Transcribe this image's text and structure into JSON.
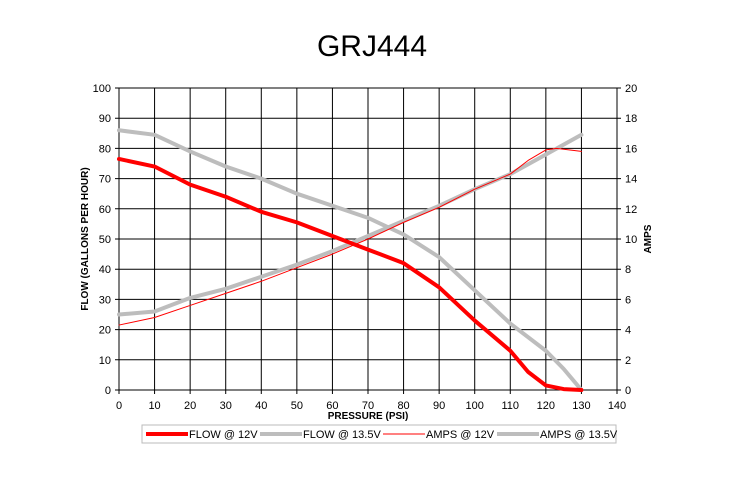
{
  "chart_data": {
    "type": "line",
    "title": "GRJ444",
    "xlabel": "PRESSURE (PSI)",
    "ylabel": "FLOW (GALLONS PER HOUR)",
    "y2label": "AMPS",
    "xlim": [
      0,
      140
    ],
    "ylim": [
      0,
      100
    ],
    "y2lim": [
      0,
      20
    ],
    "xticks": [
      "0",
      "10",
      "20",
      "30",
      "40",
      "50",
      "60",
      "70",
      "80",
      "90",
      "100",
      "110",
      "120",
      "130",
      "140"
    ],
    "yticks": [
      "0",
      "10",
      "20",
      "30",
      "40",
      "50",
      "60",
      "70",
      "80",
      "90",
      "100"
    ],
    "y2ticks": [
      "0",
      "2",
      "4",
      "6",
      "8",
      "10",
      "12",
      "14",
      "16",
      "18",
      "20"
    ],
    "grid": true,
    "legend_position": "bottom",
    "series": [
      {
        "name": "FLOW @ 12V",
        "axis": "left",
        "color": "#ff0000",
        "width": 4,
        "x": [
          0,
          10,
          20,
          30,
          40,
          50,
          60,
          70,
          80,
          90,
          100,
          110,
          115,
          120,
          125,
          130
        ],
        "y": [
          76.5,
          74,
          68,
          64,
          59,
          55.5,
          51,
          46.5,
          42,
          34,
          23,
          13,
          6,
          1.5,
          0.3,
          0
        ]
      },
      {
        "name": "FLOW @ 13.5V",
        "axis": "left",
        "color": "#bdbdbd",
        "width": 4,
        "x": [
          0,
          10,
          20,
          30,
          40,
          50,
          60,
          70,
          80,
          90,
          100,
          110,
          120,
          125,
          130
        ],
        "y": [
          86,
          84.5,
          79,
          74,
          70,
          65,
          61,
          57,
          51.5,
          44,
          33,
          22,
          13,
          7,
          0
        ]
      },
      {
        "name": "AMPS @ 12V",
        "axis": "right",
        "color": "#ff0000",
        "width": 1,
        "x": [
          0,
          10,
          20,
          30,
          40,
          50,
          60,
          70,
          80,
          90,
          100,
          110,
          115,
          120,
          123,
          130
        ],
        "y": [
          4.3,
          4.8,
          5.6,
          6.4,
          7.2,
          8.1,
          9.0,
          10.0,
          11.1,
          12.1,
          13.3,
          14.3,
          15.2,
          15.9,
          16.0,
          15.8
        ]
      },
      {
        "name": "AMPS @ 13.5V",
        "axis": "right",
        "color": "#bdbdbd",
        "width": 4,
        "x": [
          0,
          10,
          20,
          30,
          40,
          50,
          60,
          70,
          80,
          90,
          100,
          110,
          120,
          130
        ],
        "y": [
          5.0,
          5.2,
          6.1,
          6.7,
          7.5,
          8.3,
          9.2,
          10.2,
          11.2,
          12.2,
          13.3,
          14.3,
          15.6,
          16.9
        ]
      }
    ]
  }
}
